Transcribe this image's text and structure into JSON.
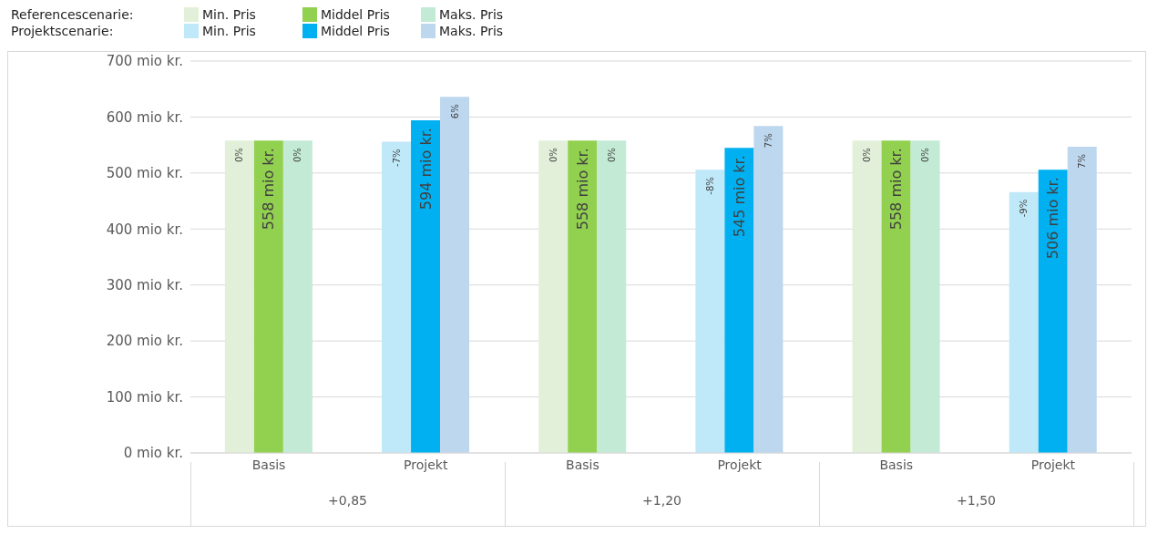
{
  "chart_data": {
    "type": "bar",
    "categories": [
      "Basis",
      "Projekt",
      "Basis",
      "Projekt",
      "Basis",
      "Projekt"
    ],
    "series": [
      {
        "name": "Min. Pris",
        "color": "#e2f0d9",
        "values": [
          558,
          null,
          558,
          null,
          558,
          null
        ]
      },
      {
        "name": "Middel Pris",
        "color": "#92d050",
        "values": [
          558,
          null,
          558,
          null,
          558,
          null
        ],
        "value_labels": [
          "558 mio kr.",
          null,
          "558 mio kr.",
          null,
          "558 mio kr.",
          null
        ]
      },
      {
        "name": "Maks. Pris",
        "color": "#c3ead5",
        "values": [
          558,
          null,
          558,
          null,
          558,
          null
        ]
      },
      {
        "name": "Min. Pris",
        "color": "#bfe8f8",
        "values": [
          null,
          556,
          null,
          506,
          null,
          466
        ]
      },
      {
        "name": "Middel Pris",
        "color": "#00b0f0",
        "values": [
          null,
          594,
          null,
          545,
          null,
          506
        ],
        "value_labels": [
          null,
          "594 mio kr.",
          null,
          "545 mio kr.",
          null,
          "506 mio kr."
        ]
      },
      {
        "name": "Maks. Pris",
        "color": "#bdd7ee",
        "values": [
          null,
          636,
          null,
          584,
          null,
          547
        ]
      }
    ],
    "annotations": [
      "Referencescenarie:",
      "Projektscenarie:",
      "+0,85",
      "+1,20",
      "+1,50",
      "0%",
      "0%",
      "-7%",
      "6%",
      "0%",
      "0%",
      "-8%",
      "7%",
      "0%",
      "0%",
      "-9%",
      "7%"
    ],
    "ylim": [
      0,
      700
    ],
    "yticks": [
      {
        "value": 0,
        "label": "0 mio kr."
      },
      {
        "value": 100,
        "label": "100 mio kr."
      },
      {
        "value": 200,
        "label": "200 mio kr."
      },
      {
        "value": 300,
        "label": "300 mio kr."
      },
      {
        "value": 400,
        "label": "400 mio kr."
      },
      {
        "value": 500,
        "label": "500 mio kr."
      },
      {
        "value": 600,
        "label": "600 mio kr."
      },
      {
        "value": 700,
        "label": "700 mio kr."
      }
    ],
    "grid": "y",
    "legend": "top left"
  }
}
